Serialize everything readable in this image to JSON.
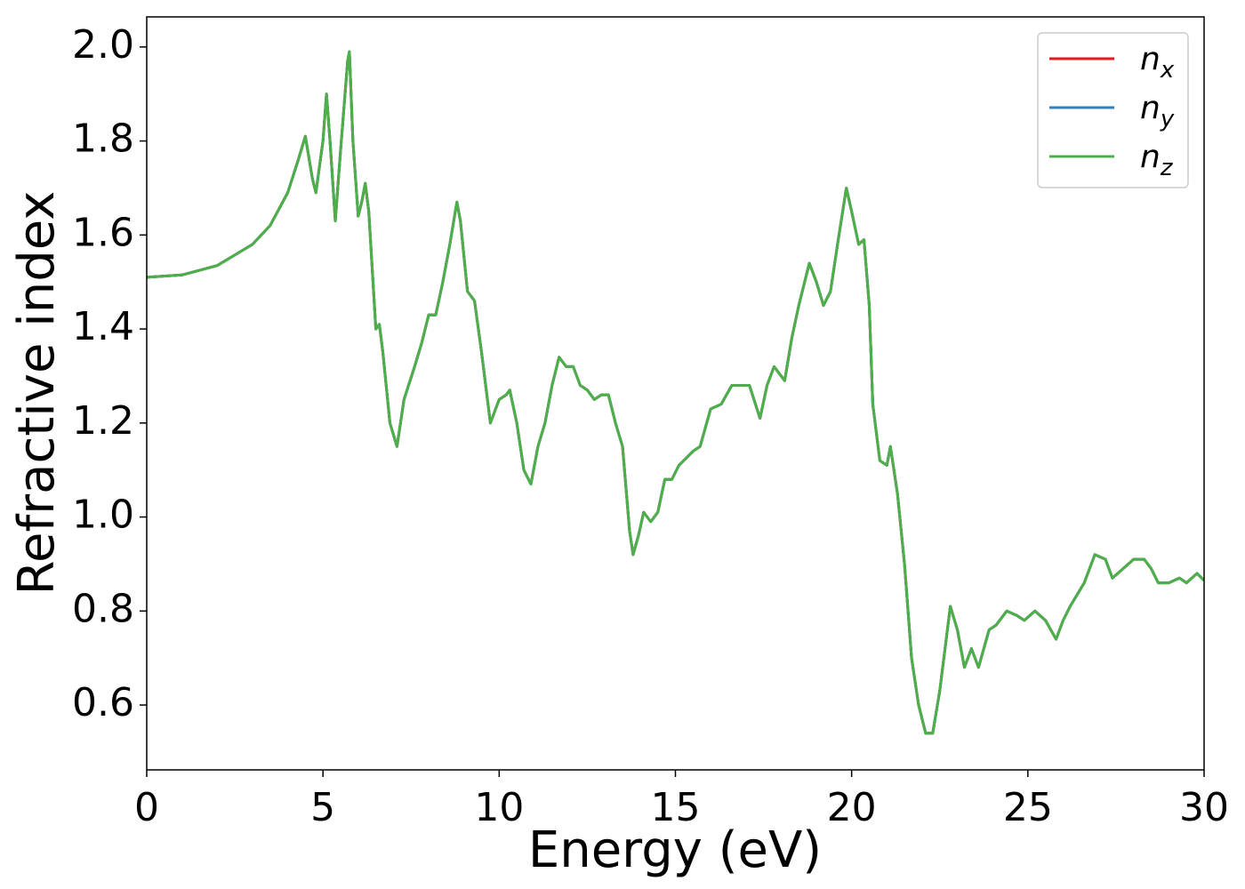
{
  "chart_data": {
    "type": "line",
    "xlabel": "Energy (eV)",
    "ylabel": "Refractive index",
    "x": [
      0,
      1,
      2,
      3,
      3.5,
      4,
      4.3,
      4.5,
      4.7,
      4.8,
      5.0,
      5.1,
      5.2,
      5.35,
      5.5,
      5.7,
      5.75,
      5.85,
      6.0,
      6.1,
      6.2,
      6.3,
      6.5,
      6.6,
      6.7,
      6.9,
      7.1,
      7.3,
      7.6,
      7.8,
      8.0,
      8.2,
      8.4,
      8.6,
      8.8,
      8.9,
      9.1,
      9.3,
      9.5,
      9.75,
      10.0,
      10.2,
      10.3,
      10.5,
      10.7,
      10.9,
      11.1,
      11.3,
      11.5,
      11.7,
      11.9,
      12.1,
      12.3,
      12.5,
      12.7,
      12.9,
      13.1,
      13.3,
      13.5,
      13.7,
      13.8,
      13.95,
      14.1,
      14.3,
      14.5,
      14.7,
      14.9,
      15.1,
      15.5,
      15.7,
      16.0,
      16.3,
      16.6,
      16.9,
      17.1,
      17.4,
      17.6,
      17.8,
      18.1,
      18.3,
      18.5,
      18.8,
      19.0,
      19.2,
      19.4,
      19.6,
      19.85,
      20.0,
      20.2,
      20.35,
      20.5,
      20.6,
      20.8,
      21.0,
      21.1,
      21.3,
      21.5,
      21.7,
      21.9,
      22.1,
      22.3,
      22.5,
      22.8,
      23.0,
      23.2,
      23.4,
      23.6,
      23.9,
      24.1,
      24.4,
      24.7,
      24.9,
      25.2,
      25.5,
      25.8,
      26.0,
      26.2,
      26.6,
      26.9,
      27.2,
      27.4,
      27.7,
      28.0,
      28.3,
      28.5,
      28.7,
      29.0,
      29.3,
      29.5,
      29.8,
      30.0
    ],
    "series": [
      {
        "name": "nx",
        "color": "#e41a1c",
        "values": [
          1.51,
          1.515,
          1.535,
          1.58,
          1.62,
          1.69,
          1.76,
          1.81,
          1.72,
          1.69,
          1.8,
          1.9,
          1.8,
          1.63,
          1.78,
          1.97,
          1.99,
          1.8,
          1.64,
          1.67,
          1.71,
          1.65,
          1.4,
          1.41,
          1.35,
          1.2,
          1.15,
          1.25,
          1.32,
          1.37,
          1.43,
          1.43,
          1.5,
          1.58,
          1.67,
          1.63,
          1.48,
          1.46,
          1.35,
          1.2,
          1.25,
          1.26,
          1.27,
          1.2,
          1.1,
          1.07,
          1.15,
          1.2,
          1.28,
          1.34,
          1.32,
          1.32,
          1.28,
          1.27,
          1.25,
          1.26,
          1.26,
          1.2,
          1.15,
          0.97,
          0.92,
          0.96,
          1.01,
          0.99,
          1.01,
          1.08,
          1.08,
          1.11,
          1.14,
          1.15,
          1.23,
          1.24,
          1.28,
          1.28,
          1.28,
          1.21,
          1.28,
          1.32,
          1.29,
          1.38,
          1.45,
          1.54,
          1.5,
          1.45,
          1.48,
          1.58,
          1.7,
          1.65,
          1.58,
          1.59,
          1.45,
          1.24,
          1.12,
          1.11,
          1.15,
          1.05,
          0.9,
          0.7,
          0.6,
          0.54,
          0.54,
          0.63,
          0.81,
          0.76,
          0.68,
          0.72,
          0.68,
          0.76,
          0.77,
          0.8,
          0.79,
          0.78,
          0.8,
          0.78,
          0.74,
          0.78,
          0.81,
          0.86,
          0.92,
          0.91,
          0.87,
          0.89,
          0.91,
          0.91,
          0.89,
          0.86,
          0.86,
          0.87,
          0.86,
          0.88,
          0.865
        ]
      },
      {
        "name": "ny",
        "color": "#377eb8",
        "values": [
          1.51,
          1.515,
          1.535,
          1.58,
          1.62,
          1.69,
          1.76,
          1.81,
          1.72,
          1.69,
          1.8,
          1.9,
          1.8,
          1.63,
          1.78,
          1.97,
          1.99,
          1.8,
          1.64,
          1.67,
          1.71,
          1.65,
          1.4,
          1.41,
          1.35,
          1.2,
          1.15,
          1.25,
          1.32,
          1.37,
          1.43,
          1.43,
          1.5,
          1.58,
          1.67,
          1.63,
          1.48,
          1.46,
          1.35,
          1.2,
          1.25,
          1.26,
          1.27,
          1.2,
          1.1,
          1.07,
          1.15,
          1.2,
          1.28,
          1.34,
          1.32,
          1.32,
          1.28,
          1.27,
          1.25,
          1.26,
          1.26,
          1.2,
          1.15,
          0.97,
          0.92,
          0.96,
          1.01,
          0.99,
          1.01,
          1.08,
          1.08,
          1.11,
          1.14,
          1.15,
          1.23,
          1.24,
          1.28,
          1.28,
          1.28,
          1.21,
          1.28,
          1.32,
          1.29,
          1.38,
          1.45,
          1.54,
          1.5,
          1.45,
          1.48,
          1.58,
          1.7,
          1.65,
          1.58,
          1.59,
          1.45,
          1.24,
          1.12,
          1.11,
          1.15,
          1.05,
          0.9,
          0.7,
          0.6,
          0.54,
          0.54,
          0.63,
          0.81,
          0.76,
          0.68,
          0.72,
          0.68,
          0.76,
          0.77,
          0.8,
          0.79,
          0.78,
          0.8,
          0.78,
          0.74,
          0.78,
          0.81,
          0.86,
          0.92,
          0.91,
          0.87,
          0.89,
          0.91,
          0.91,
          0.89,
          0.86,
          0.86,
          0.87,
          0.86,
          0.88,
          0.865
        ]
      },
      {
        "name": "nz",
        "color": "#4daf4a",
        "values": [
          1.51,
          1.515,
          1.535,
          1.58,
          1.62,
          1.69,
          1.76,
          1.81,
          1.72,
          1.69,
          1.8,
          1.9,
          1.8,
          1.63,
          1.78,
          1.97,
          1.99,
          1.8,
          1.64,
          1.67,
          1.71,
          1.65,
          1.4,
          1.41,
          1.35,
          1.2,
          1.15,
          1.25,
          1.32,
          1.37,
          1.43,
          1.43,
          1.5,
          1.58,
          1.67,
          1.63,
          1.48,
          1.46,
          1.35,
          1.2,
          1.25,
          1.26,
          1.27,
          1.2,
          1.1,
          1.07,
          1.15,
          1.2,
          1.28,
          1.34,
          1.32,
          1.32,
          1.28,
          1.27,
          1.25,
          1.26,
          1.26,
          1.2,
          1.15,
          0.97,
          0.92,
          0.96,
          1.01,
          0.99,
          1.01,
          1.08,
          1.08,
          1.11,
          1.14,
          1.15,
          1.23,
          1.24,
          1.28,
          1.28,
          1.28,
          1.21,
          1.28,
          1.32,
          1.29,
          1.38,
          1.45,
          1.54,
          1.5,
          1.45,
          1.48,
          1.58,
          1.7,
          1.65,
          1.58,
          1.59,
          1.45,
          1.24,
          1.12,
          1.11,
          1.15,
          1.05,
          0.9,
          0.7,
          0.6,
          0.54,
          0.54,
          0.63,
          0.81,
          0.76,
          0.68,
          0.72,
          0.68,
          0.76,
          0.77,
          0.8,
          0.79,
          0.78,
          0.8,
          0.78,
          0.74,
          0.78,
          0.81,
          0.86,
          0.92,
          0.91,
          0.87,
          0.89,
          0.91,
          0.91,
          0.89,
          0.86,
          0.86,
          0.87,
          0.86,
          0.88,
          0.865
        ]
      }
    ],
    "xlim": [
      0,
      30
    ],
    "xticks": [
      0,
      5,
      10,
      15,
      20,
      25,
      30
    ],
    "ylim": [
      0.462,
      2.064
    ],
    "yticks": [
      0.6,
      0.8,
      {
        "value": 1,
        "label": "1.0"
      },
      1.2,
      1.4,
      1.6,
      1.8,
      {
        "value": 2,
        "label": "2.0"
      }
    ],
    "grid": false,
    "legend": "upper right"
  }
}
